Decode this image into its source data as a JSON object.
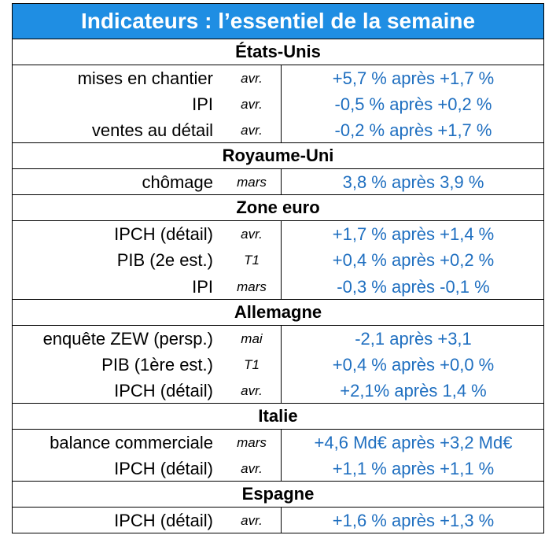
{
  "title": "Indicateurs : l’essentiel de la semaine",
  "sections": [
    {
      "name": "États-Unis",
      "rows": [
        {
          "label": "mises en chantier",
          "period": "avr.",
          "value": "+5,7 % après +1,7 %"
        },
        {
          "label": "IPI",
          "period": "avr.",
          "value": "-0,5 % après +0,2 %"
        },
        {
          "label": "ventes au détail",
          "period": "avr.",
          "value": "-0,2 % après +1,7 %"
        }
      ]
    },
    {
      "name": "Royaume-Uni",
      "rows": [
        {
          "label": "chômage",
          "period": "mars",
          "value": "3,8 % après 3,9 %"
        }
      ]
    },
    {
      "name": "Zone euro",
      "rows": [
        {
          "label": "IPCH (détail)",
          "period": "avr.",
          "value": "+1,7 % après +1,4 %"
        },
        {
          "label": "PIB (2e est.)",
          "period": "T1",
          "value": "+0,4 % après +0,2 %"
        },
        {
          "label": "IPI",
          "period": "mars",
          "value": "-0,3 % après -0,1 %"
        }
      ]
    },
    {
      "name": "Allemagne",
      "rows": [
        {
          "label": "enquête ZEW (persp.)",
          "period": "mai",
          "value": "-2,1 après +3,1"
        },
        {
          "label": "PIB (1ère est.)",
          "period": "T1",
          "value": "+0,4 % après +0,0 %"
        },
        {
          "label": "IPCH (détail)",
          "period": "avr.",
          "value": "+2,1% après 1,4 %"
        }
      ]
    },
    {
      "name": "Italie",
      "rows": [
        {
          "label": "balance commerciale",
          "period": "mars",
          "value": "+4,6 Md€ après +3,2 Md€"
        },
        {
          "label": "IPCH (détail)",
          "period": "avr.",
          "value": "+1,1 % après +1,1 %"
        }
      ]
    },
    {
      "name": "Espagne",
      "rows": [
        {
          "label": "IPCH (détail)",
          "period": "avr.",
          "value": "+1,6 % après +1,3 %"
        }
      ]
    }
  ]
}
